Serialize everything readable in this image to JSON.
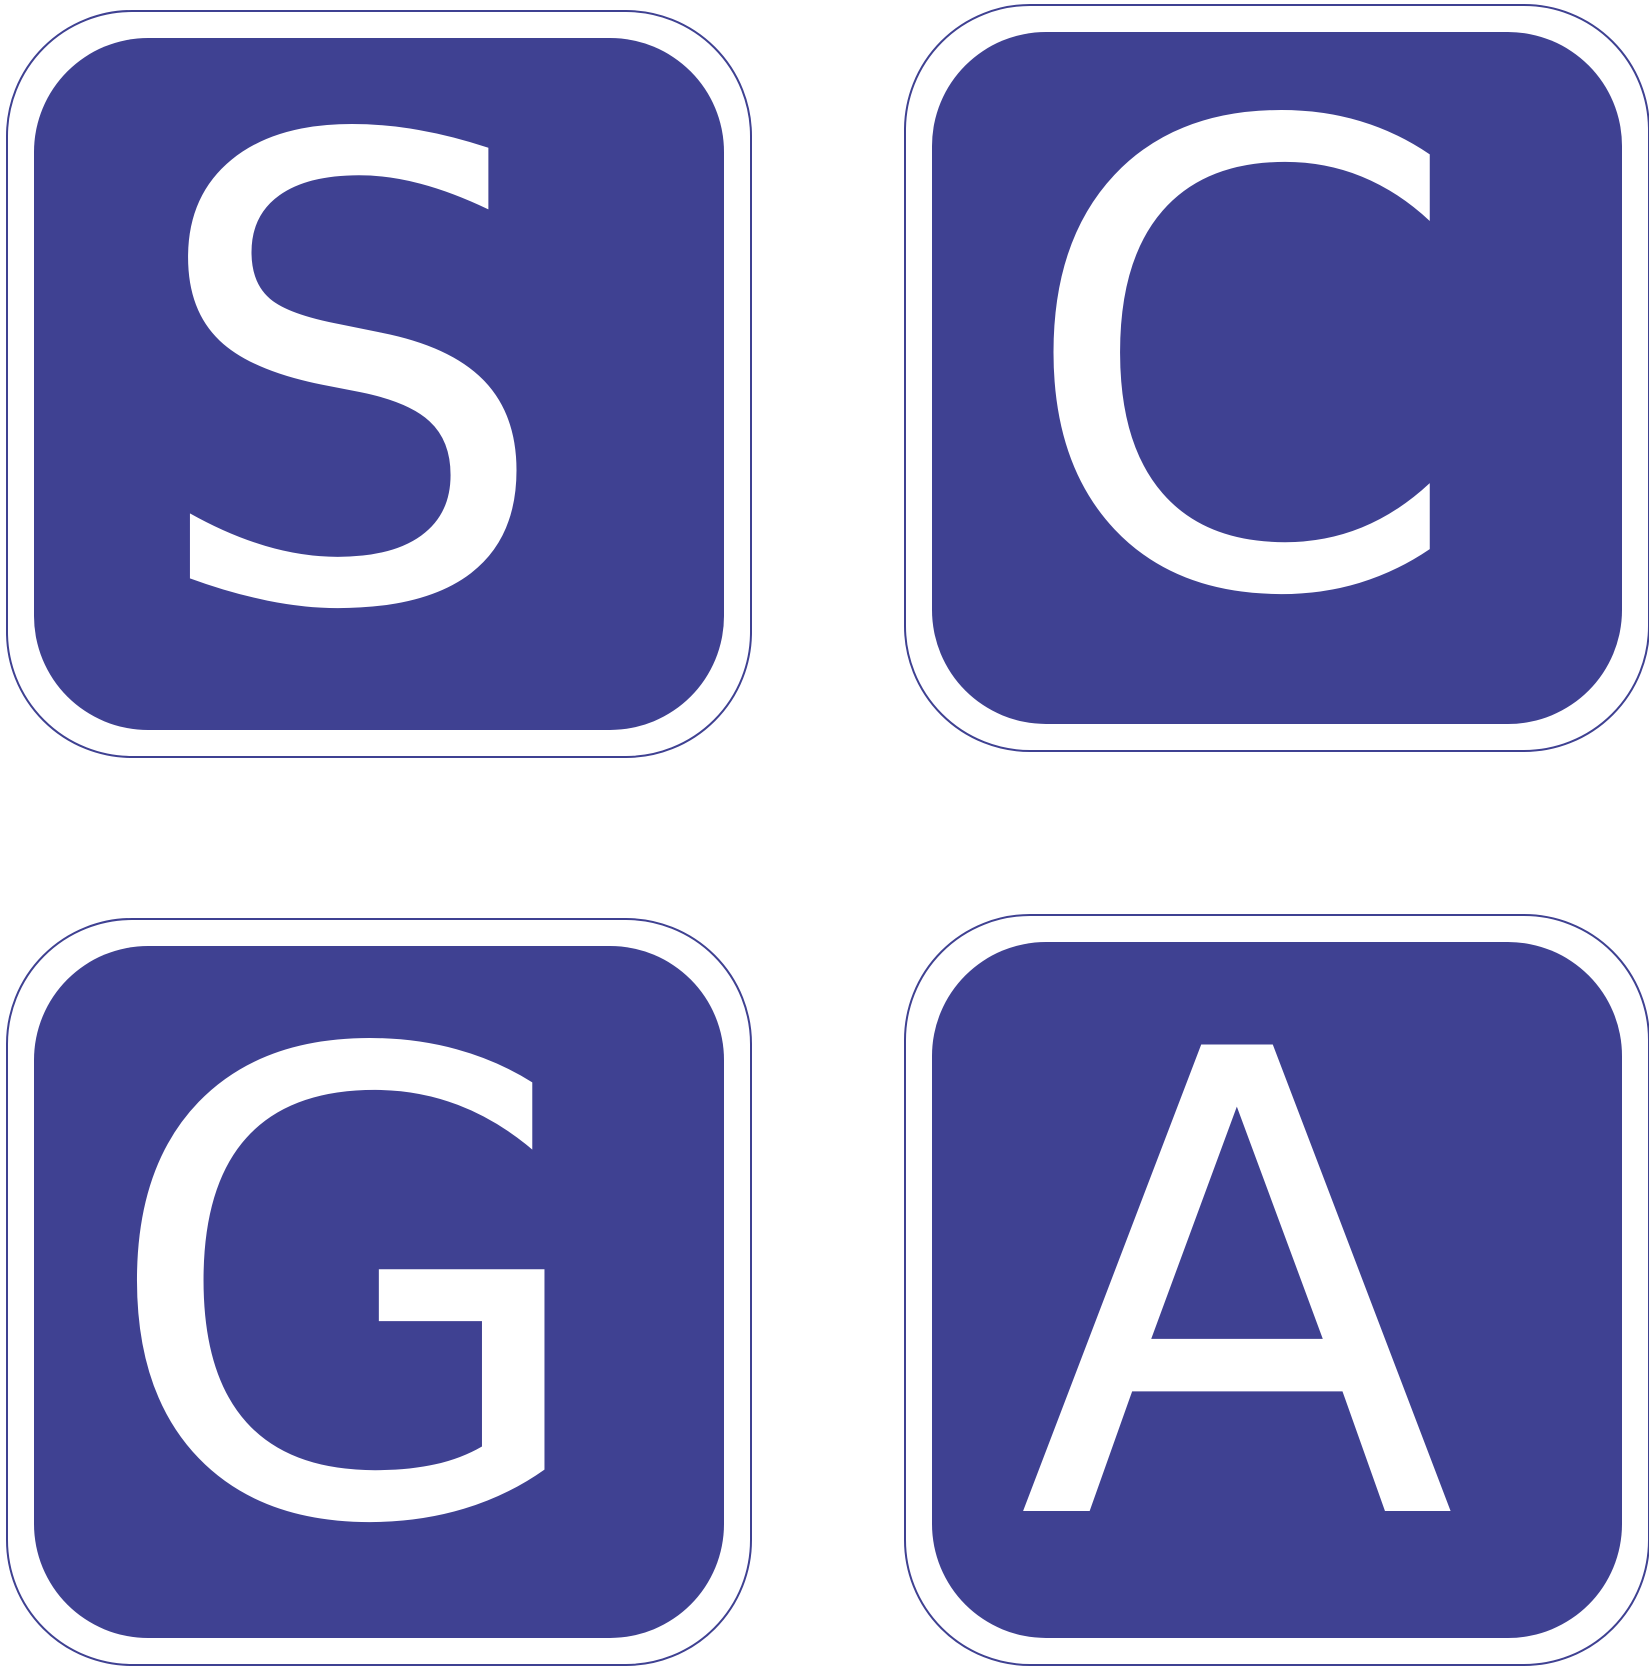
{
  "logo": {
    "letters": [
      "S",
      "C",
      "G",
      "A"
    ],
    "colors": {
      "tile": "#3f4192",
      "letter": "#ffffff",
      "background": "#ffffff"
    }
  }
}
